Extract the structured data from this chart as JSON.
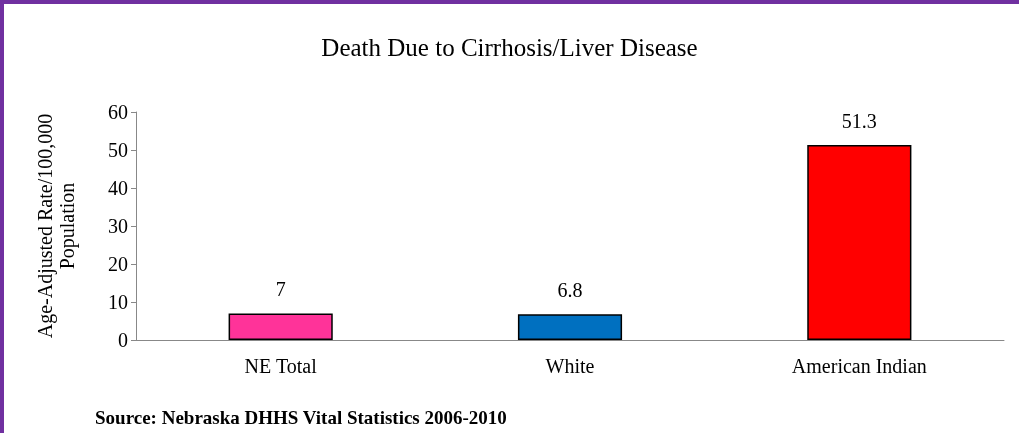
{
  "chart_data": {
    "type": "bar",
    "title": "Death Due to Cirrhosis/Liver Disease",
    "ylabel": "Age-Adjusted Rate/100,000\nPopulation",
    "categories": [
      "NE Total",
      "White",
      "American Indian"
    ],
    "values": [
      7,
      6.8,
      51.3
    ],
    "colors": [
      "#ff3399",
      "#0070c0",
      "#ff0000"
    ],
    "ylim": [
      0,
      60
    ],
    "yticks": [
      0,
      10,
      20,
      30,
      40,
      50,
      60
    ],
    "grid": false,
    "data_labels": true,
    "annotations": [
      "Source: Nebraska DHHS Vital Statistics 2006-2010"
    ]
  }
}
